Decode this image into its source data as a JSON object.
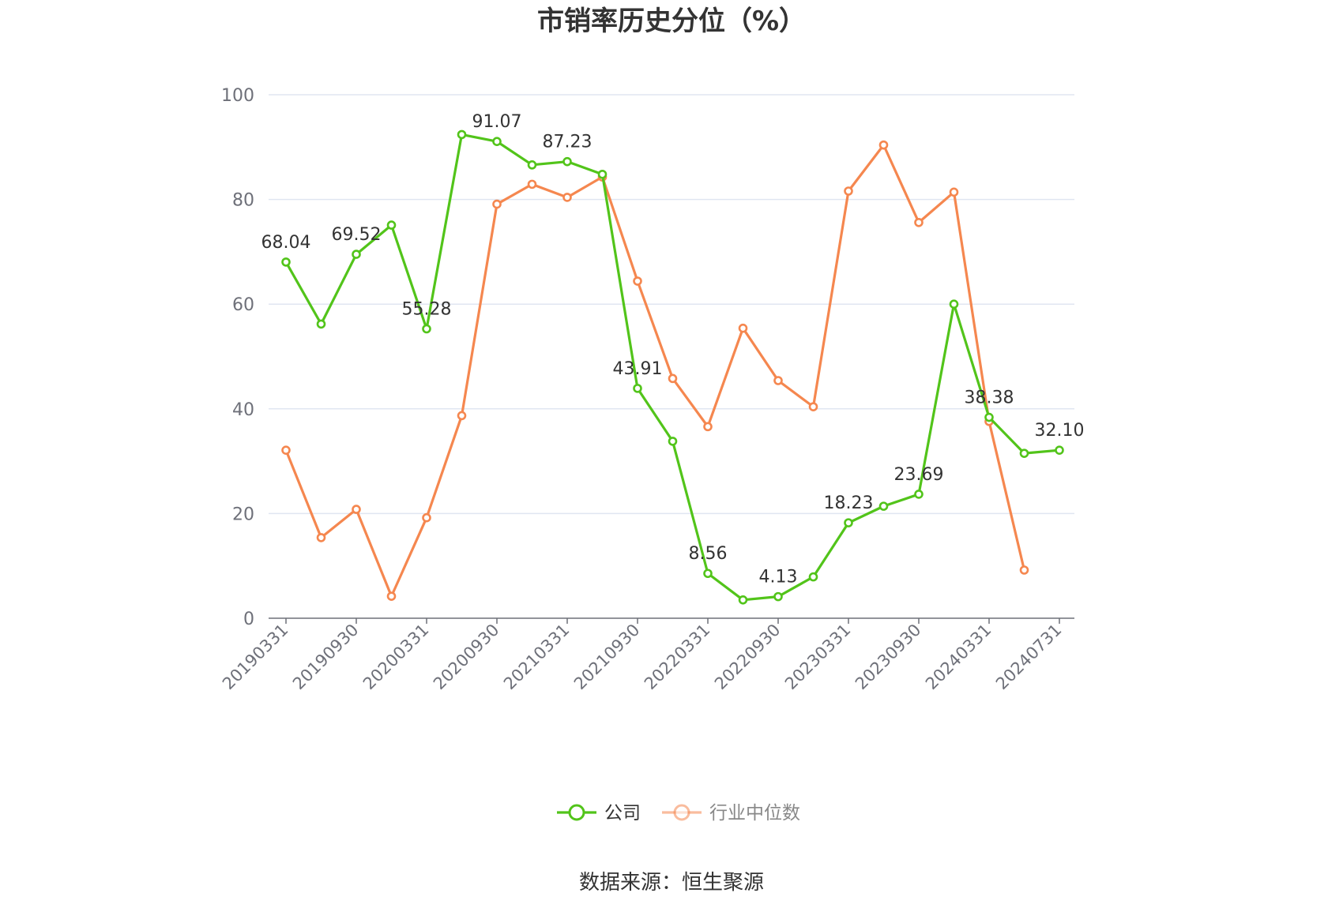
{
  "title": "市销率历史分位（%）",
  "source_text": "数据来源：恒生聚源",
  "colors": {
    "company": "#52c41a",
    "industry": "#f5874f",
    "grid": "#e0e6f1",
    "axis": "#6e7079"
  },
  "legend": [
    {
      "name": "公司",
      "color": "#52c41a",
      "text_color": "#333333"
    },
    {
      "name": "行业中位数",
      "color": "#f5874f",
      "text_color": "#888888"
    }
  ],
  "chart_data": {
    "type": "line",
    "title": "市销率历史分位（%）",
    "x": [
      "20190331",
      "20190630",
      "20190930",
      "20191231",
      "20200331",
      "20200630",
      "20200930",
      "20201231",
      "20210331",
      "20210630",
      "20210930",
      "20211231",
      "20220331",
      "20220630",
      "20220930",
      "20221231",
      "20230331",
      "20230630",
      "20230930",
      "20231231",
      "20240331",
      "20240630",
      "20240731"
    ],
    "x_tick_labels": [
      "20190331",
      "20190930",
      "20200331",
      "20200930",
      "20210331",
      "20210930",
      "20220331",
      "20220930",
      "20230331",
      "20230930",
      "20240331",
      "20240731"
    ],
    "ylim": [
      0,
      100
    ],
    "y_ticks": [
      0,
      20,
      40,
      60,
      80,
      100
    ],
    "grid": true,
    "legend_position": "bottom",
    "series": [
      {
        "name": "公司",
        "values": [
          68.04,
          56.2,
          69.52,
          75.1,
          55.28,
          92.4,
          91.07,
          86.6,
          87.23,
          84.8,
          43.91,
          33.8,
          8.56,
          3.5,
          4.13,
          7.9,
          18.23,
          21.4,
          23.69,
          60.0,
          38.38,
          31.5,
          32.1
        ],
        "labels": [
          "68.04",
          "",
          "69.52",
          "",
          "55.28",
          "",
          "91.07",
          "",
          "87.23",
          "",
          "43.91",
          "",
          "8.56",
          "",
          "4.13",
          "",
          "18.23",
          "",
          "23.69",
          "",
          "38.38",
          "",
          "32.10"
        ]
      },
      {
        "name": "行业中位数",
        "values": [
          32.1,
          15.4,
          20.8,
          4.2,
          19.2,
          38.7,
          79.1,
          82.9,
          80.4,
          84.3,
          64.4,
          45.8,
          36.6,
          55.4,
          45.4,
          40.4,
          81.6,
          90.4,
          75.6,
          81.4,
          37.6,
          9.2,
          null
        ]
      }
    ]
  }
}
